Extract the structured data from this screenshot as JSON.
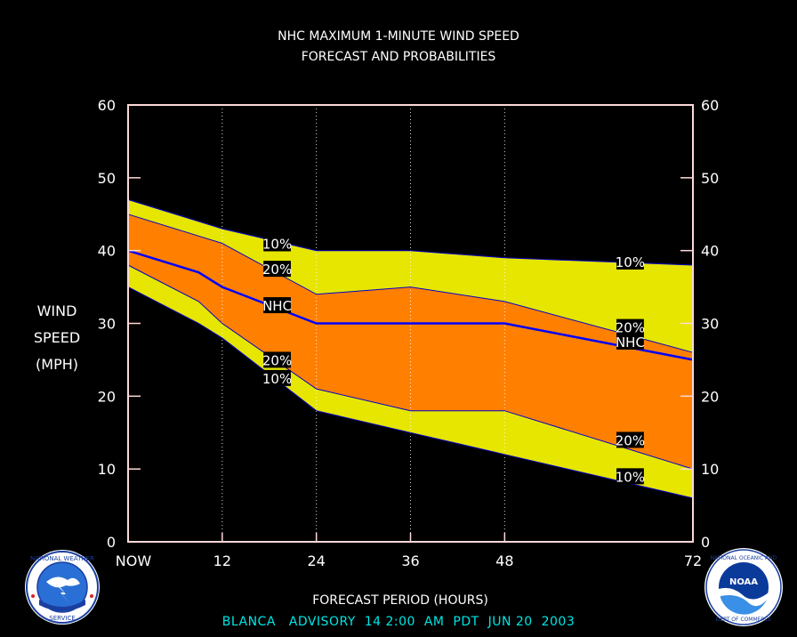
{
  "chart_data": {
    "type": "area",
    "title_line1": "NHC MAXIMUM 1-MINUTE WIND SPEED",
    "title_line2": "FORECAST AND PROBABILITIES",
    "ylabel_lines": [
      "WIND",
      "SPEED",
      "(MPH)"
    ],
    "xlabel": "FORECAST PERIOD (HOURS)",
    "footer": "BLANCA   ADVISORY  14 2:00  AM  PDT  JUN 20  2003",
    "x_ticks": [
      {
        "value": 0,
        "label": "NOW"
      },
      {
        "value": 12,
        "label": "12"
      },
      {
        "value": 24,
        "label": "24"
      },
      {
        "value": 36,
        "label": "36"
      },
      {
        "value": 48,
        "label": "48"
      },
      {
        "value": 72,
        "label": "72"
      }
    ],
    "y_ticks": [
      0,
      10,
      20,
      30,
      40,
      50,
      60
    ],
    "xlim": [
      0,
      72
    ],
    "ylim": [
      0,
      60
    ],
    "grid": "dotted vertical at 12, 24, 36, 48",
    "x": [
      0,
      9,
      12,
      24,
      36,
      48,
      72
    ],
    "series": [
      {
        "name": "10%",
        "role": "upper",
        "values": [
          47,
          44,
          43,
          40,
          40,
          39,
          38
        ]
      },
      {
        "name": "20%",
        "role": "upper",
        "values": [
          45,
          42,
          41,
          34,
          35,
          33,
          26
        ]
      },
      {
        "name": "NHC",
        "role": "forecast",
        "values": [
          40,
          37,
          35,
          30,
          30,
          30,
          25
        ]
      },
      {
        "name": "20%",
        "role": "lower",
        "values": [
          38,
          33,
          30,
          21,
          18,
          18,
          10
        ]
      },
      {
        "name": "10%",
        "role": "lower",
        "values": [
          35,
          30,
          28,
          18,
          15,
          12,
          6
        ]
      }
    ],
    "labels": [
      {
        "text": "10%",
        "x": 19,
        "y": 41
      },
      {
        "text": "20%",
        "x": 19,
        "y": 37.5
      },
      {
        "text": "NHC",
        "x": 19,
        "y": 32.5
      },
      {
        "text": "20%",
        "x": 19,
        "y": 25
      },
      {
        "text": "10%",
        "x": 19,
        "y": 22.5
      },
      {
        "text": "10%",
        "x": 64,
        "y": 38.5
      },
      {
        "text": "20%",
        "x": 64,
        "y": 29.5
      },
      {
        "text": "NHC",
        "x": 64,
        "y": 27.5
      },
      {
        "text": "20%",
        "x": 64,
        "y": 14
      },
      {
        "text": "10%",
        "x": 64,
        "y": 9
      }
    ],
    "colors": {
      "background": "#000000",
      "outer_band": "#e6e600",
      "inner_band": "#ff8000",
      "nhc_line": "#0000ff",
      "band_edge": "#0000cc",
      "frame": "#ffd9d9",
      "text": "#ffffff",
      "footer": "#00e6e6"
    }
  },
  "logos": {
    "left": {
      "icon": "nws-logo",
      "text": "NATIONAL WEATHER SERVICE"
    },
    "right": {
      "icon": "noaa-logo",
      "text": "NOAA"
    }
  }
}
